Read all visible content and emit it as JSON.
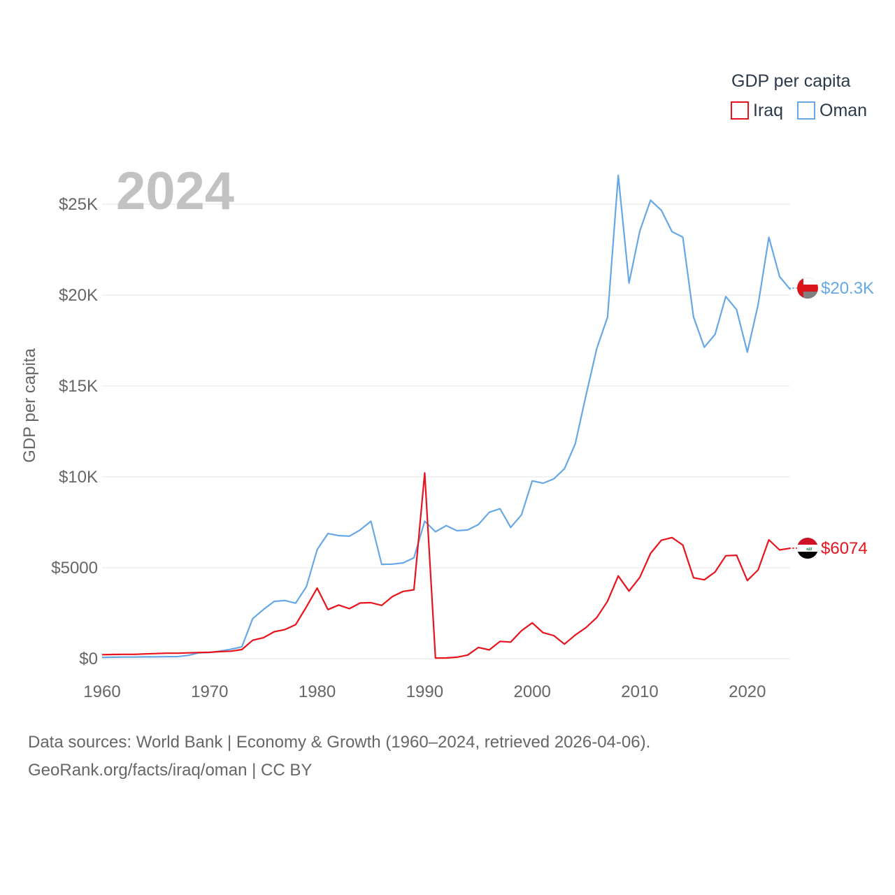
{
  "chart_data": {
    "type": "line",
    "year_label": "2024",
    "ylabel": "GDP per capita",
    "ylim": [
      0,
      26000
    ],
    "xlim": [
      1960,
      2024
    ],
    "y_ticks": [
      {
        "value": 0,
        "label": "$0"
      },
      {
        "value": 5000,
        "label": "$5000"
      },
      {
        "value": 10000,
        "label": "$10K"
      },
      {
        "value": 15000,
        "label": "$15K"
      },
      {
        "value": 20000,
        "label": "$20K"
      },
      {
        "value": 25000,
        "label": "$25K"
      }
    ],
    "x_ticks": [
      {
        "value": 1960,
        "label": "1960"
      },
      {
        "value": 1970,
        "label": "1970"
      },
      {
        "value": 1980,
        "label": "1980"
      },
      {
        "value": 1990,
        "label": "1990"
      },
      {
        "value": 2000,
        "label": "2000"
      },
      {
        "value": 2010,
        "label": "2010"
      },
      {
        "value": 2020,
        "label": "2020"
      }
    ],
    "legend": {
      "title": "GDP per capita",
      "position": "top-right"
    },
    "series": [
      {
        "name": "Iraq",
        "color": "#e8131c",
        "end_label": "$6074",
        "flag": "iraq-flag",
        "x": [
          1960,
          1961,
          1962,
          1963,
          1964,
          1965,
          1966,
          1967,
          1968,
          1969,
          1970,
          1971,
          1972,
          1973,
          1974,
          1975,
          1976,
          1977,
          1978,
          1979,
          1980,
          1981,
          1982,
          1983,
          1984,
          1985,
          1986,
          1987,
          1988,
          1989,
          1990,
          1991,
          1992,
          1993,
          1994,
          1995,
          1996,
          1997,
          1998,
          1999,
          2000,
          2001,
          2002,
          2003,
          2004,
          2005,
          2006,
          2007,
          2008,
          2009,
          2010,
          2011,
          2012,
          2013,
          2014,
          2015,
          2016,
          2017,
          2018,
          2019,
          2020,
          2021,
          2022,
          2023,
          2024
        ],
        "values": [
          220,
          230,
          240,
          240,
          260,
          280,
          300,
          300,
          320,
          340,
          350,
          390,
          410,
          500,
          1010,
          1150,
          1480,
          1600,
          1870,
          2850,
          3880,
          2700,
          2950,
          2750,
          3060,
          3080,
          2930,
          3420,
          3700,
          3790,
          10220,
          30,
          40,
          80,
          200,
          620,
          480,
          950,
          910,
          1540,
          1970,
          1430,
          1270,
          800,
          1300,
          1710,
          2260,
          3160,
          4550,
          3720,
          4470,
          5790,
          6510,
          6660,
          6250,
          4450,
          4340,
          4770,
          5660,
          5690,
          4300,
          4880,
          6540,
          5980,
          6074
        ]
      },
      {
        "name": "Oman",
        "color": "#66a8e5",
        "end_label": "$20.3K",
        "flag": "oman-flag",
        "x": [
          1960,
          1961,
          1962,
          1963,
          1964,
          1965,
          1966,
          1967,
          1968,
          1969,
          1970,
          1971,
          1972,
          1973,
          1974,
          1975,
          1976,
          1977,
          1978,
          1979,
          1980,
          1981,
          1982,
          1983,
          1984,
          1985,
          1986,
          1987,
          1988,
          1989,
          1990,
          1991,
          1992,
          1993,
          1994,
          1995,
          1996,
          1997,
          1998,
          1999,
          2000,
          2001,
          2002,
          2003,
          2004,
          2005,
          2006,
          2007,
          2008,
          2009,
          2010,
          2011,
          2012,
          2013,
          2014,
          2015,
          2016,
          2017,
          2018,
          2019,
          2020,
          2021,
          2022,
          2023,
          2024
        ],
        "values": [
          70,
          80,
          90,
          90,
          100,
          100,
          110,
          110,
          180,
          320,
          340,
          420,
          520,
          650,
          2200,
          2700,
          3150,
          3200,
          3050,
          3960,
          6000,
          6880,
          6770,
          6740,
          7080,
          7560,
          5190,
          5200,
          5270,
          5550,
          7560,
          6980,
          7320,
          7040,
          7080,
          7380,
          8050,
          8250,
          7220,
          7910,
          9780,
          9650,
          9890,
          10450,
          11820,
          14490,
          17060,
          18790,
          26590,
          20660,
          23520,
          25220,
          24660,
          23490,
          23190,
          18790,
          17130,
          17840,
          19920,
          19200,
          16860,
          19460,
          23180,
          21020,
          20300
        ]
      }
    ]
  },
  "footer": {
    "line1": "Data sources: World Bank | Economy & Growth (1960–2024, retrieved 2026-04-06).",
    "line2": "GeoRank.org/facts/iraq/oman | CC BY"
  }
}
